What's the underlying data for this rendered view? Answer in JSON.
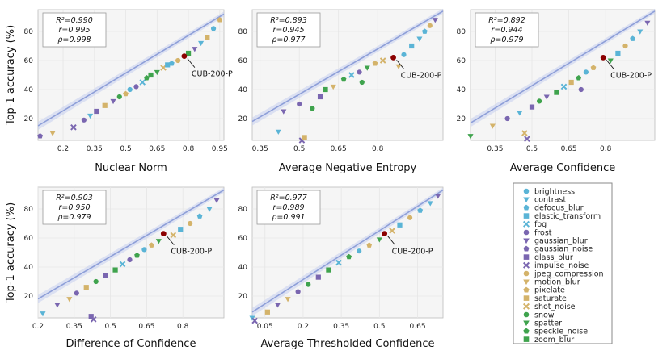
{
  "chart_data": [
    {
      "type": "scatter",
      "xlabel": "Nuclear Norm",
      "ylabel": "Top-1 accuracy (%)",
      "xticks": [
        "0.2",
        "0.35",
        "0.5",
        "0.65",
        "0.8",
        "0.95"
      ],
      "yticks": [
        "20",
        "40",
        "60",
        "80"
      ],
      "xlim": [
        0.08,
        0.97
      ],
      "ylim": [
        5,
        95
      ],
      "stats": [
        "R²=0.990",
        "r=0.995",
        "ρ=0.998"
      ],
      "annotation": "CUB-200-P",
      "fit": [
        [
          0.08,
          15
        ],
        [
          0.97,
          92
        ]
      ],
      "reference": [
        0.78,
        63
      ],
      "points": [
        [
          0.09,
          8,
          "gaussian_noise"
        ],
        [
          0.15,
          10,
          "motion_blur"
        ],
        [
          0.25,
          14,
          "impulse_noise"
        ],
        [
          0.3,
          19,
          "frost"
        ],
        [
          0.33,
          22,
          "contrast"
        ],
        [
          0.36,
          25,
          "glass_blur"
        ],
        [
          0.4,
          29,
          "saturate"
        ],
        [
          0.44,
          32,
          "gaussian_blur"
        ],
        [
          0.47,
          35,
          "snow"
        ],
        [
          0.5,
          37,
          "pixelate"
        ],
        [
          0.52,
          40,
          "brightness"
        ],
        [
          0.55,
          42,
          "frost"
        ],
        [
          0.58,
          45,
          "fog"
        ],
        [
          0.6,
          48,
          "speckle_noise"
        ],
        [
          0.62,
          50,
          "zoom_blur"
        ],
        [
          0.65,
          52,
          "spatter"
        ],
        [
          0.68,
          55,
          "shot_noise"
        ],
        [
          0.7,
          57,
          "elastic_transform"
        ],
        [
          0.72,
          58,
          "defocus_blur"
        ],
        [
          0.75,
          60,
          "jpeg_compression"
        ],
        [
          0.8,
          65,
          "zoom_blur"
        ],
        [
          0.83,
          68,
          "gaussian_blur"
        ],
        [
          0.86,
          72,
          "contrast"
        ],
        [
          0.89,
          76,
          "saturate"
        ],
        [
          0.92,
          82,
          "brightness"
        ],
        [
          0.95,
          88,
          "pixelate"
        ]
      ]
    },
    {
      "type": "scatter",
      "xlabel": "Average Negative Entropy",
      "ylabel": "",
      "xticks": [
        "0.35",
        "0.5",
        "0.65",
        "0.8"
      ],
      "yticks": [
        "20",
        "40",
        "60",
        "80"
      ],
      "xlim": [
        0.32,
        1.05
      ],
      "ylim": [
        5,
        95
      ],
      "stats": [
        "R²=0.893",
        "r=0.945",
        "ρ=0.977"
      ],
      "annotation": "CUB-200-P",
      "fit": [
        [
          0.32,
          18
        ],
        [
          1.05,
          94
        ]
      ],
      "reference": [
        0.86,
        62
      ],
      "points": [
        [
          0.42,
          11,
          "contrast"
        ],
        [
          0.51,
          5,
          "impulse_noise"
        ],
        [
          0.52,
          7,
          "saturate"
        ],
        [
          0.44,
          25,
          "gaussian_blur"
        ],
        [
          0.5,
          30,
          "frost"
        ],
        [
          0.55,
          27,
          "snow"
        ],
        [
          0.58,
          35,
          "glass_blur"
        ],
        [
          0.6,
          40,
          "zoom_blur"
        ],
        [
          0.63,
          42,
          "motion_blur"
        ],
        [
          0.67,
          47,
          "speckle_noise"
        ],
        [
          0.7,
          50,
          "fog"
        ],
        [
          0.73,
          52,
          "frost"
        ],
        [
          0.76,
          55,
          "spatter"
        ],
        [
          0.79,
          58,
          "pixelate"
        ],
        [
          0.82,
          60,
          "shot_noise"
        ],
        [
          0.9,
          64,
          "brightness"
        ],
        [
          0.93,
          70,
          "elastic_transform"
        ],
        [
          0.96,
          75,
          "contrast"
        ],
        [
          0.98,
          80,
          "defocus_blur"
        ],
        [
          1.0,
          84,
          "jpeg_compression"
        ],
        [
          1.02,
          88,
          "gaussian_blur"
        ],
        [
          0.88,
          56,
          "motion_blur"
        ],
        [
          0.74,
          45,
          "snow"
        ]
      ]
    },
    {
      "type": "scatter",
      "xlabel": "Average Confidence",
      "ylabel": "",
      "xticks": [
        "0.35",
        "0.5",
        "0.65",
        "0.8"
      ],
      "yticks": [
        "20",
        "40",
        "60",
        "80"
      ],
      "xlim": [
        0.25,
        1.0
      ],
      "ylim": [
        5,
        95
      ],
      "stats": [
        "R²=0.892",
        "r=0.944",
        "ρ=0.979"
      ],
      "annotation": "CUB-200-P",
      "fit": [
        [
          0.25,
          17
        ],
        [
          1.0,
          94
        ]
      ],
      "reference": [
        0.79,
        62
      ],
      "points": [
        [
          0.25,
          8,
          "spatter"
        ],
        [
          0.47,
          10,
          "shot_noise"
        ],
        [
          0.48,
          6,
          "impulse_noise"
        ],
        [
          0.34,
          15,
          "motion_blur"
        ],
        [
          0.4,
          20,
          "frost"
        ],
        [
          0.45,
          24,
          "contrast"
        ],
        [
          0.5,
          28,
          "glass_blur"
        ],
        [
          0.53,
          32,
          "snow"
        ],
        [
          0.56,
          35,
          "gaussian_blur"
        ],
        [
          0.6,
          38,
          "zoom_blur"
        ],
        [
          0.63,
          42,
          "fog"
        ],
        [
          0.66,
          45,
          "saturate"
        ],
        [
          0.69,
          48,
          "speckle_noise"
        ],
        [
          0.72,
          52,
          "brightness"
        ],
        [
          0.75,
          55,
          "pixelate"
        ],
        [
          0.82,
          60,
          "spatter"
        ],
        [
          0.85,
          65,
          "elastic_transform"
        ],
        [
          0.88,
          70,
          "jpeg_compression"
        ],
        [
          0.91,
          75,
          "defocus_blur"
        ],
        [
          0.94,
          80,
          "contrast"
        ],
        [
          0.97,
          86,
          "gaussian_blur"
        ],
        [
          0.7,
          40,
          "frost"
        ]
      ]
    },
    {
      "type": "scatter",
      "xlabel": "Difference of Confidence",
      "ylabel": "Top-1 accuracy (%)",
      "xticks": [
        "0.2",
        "0.35",
        "0.5",
        "0.65",
        "0.8"
      ],
      "yticks": [
        "20",
        "40",
        "60",
        "80"
      ],
      "xlim": [
        0.2,
        0.97
      ],
      "ylim": [
        5,
        95
      ],
      "stats": [
        "R²=0.903",
        "r=0.950",
        "ρ=0.979"
      ],
      "annotation": "CUB-200-P",
      "fit": [
        [
          0.2,
          18
        ],
        [
          0.97,
          93
        ]
      ],
      "reference": [
        0.72,
        63
      ],
      "points": [
        [
          0.22,
          8,
          "contrast"
        ],
        [
          0.42,
          6,
          "glass_blur"
        ],
        [
          0.43,
          4,
          "impulse_noise"
        ],
        [
          0.28,
          14,
          "gaussian_blur"
        ],
        [
          0.33,
          18,
          "motion_blur"
        ],
        [
          0.36,
          22,
          "frost"
        ],
        [
          0.4,
          26,
          "saturate"
        ],
        [
          0.44,
          30,
          "snow"
        ],
        [
          0.48,
          34,
          "glass_blur"
        ],
        [
          0.52,
          38,
          "zoom_blur"
        ],
        [
          0.55,
          42,
          "fog"
        ],
        [
          0.58,
          45,
          "frost"
        ],
        [
          0.61,
          48,
          "speckle_noise"
        ],
        [
          0.64,
          52,
          "brightness"
        ],
        [
          0.67,
          55,
          "pixelate"
        ],
        [
          0.7,
          58,
          "spatter"
        ],
        [
          0.76,
          62,
          "shot_noise"
        ],
        [
          0.79,
          66,
          "elastic_transform"
        ],
        [
          0.83,
          70,
          "jpeg_compression"
        ],
        [
          0.87,
          75,
          "defocus_blur"
        ],
        [
          0.91,
          80,
          "contrast"
        ],
        [
          0.94,
          86,
          "gaussian_blur"
        ]
      ]
    },
    {
      "type": "scatter",
      "xlabel": "Average Thresholded Confidence",
      "ylabel": "",
      "xticks": [
        "0.05",
        "0.2",
        "0.35",
        "0.5",
        "0.65"
      ],
      "yticks": [
        "20",
        "40",
        "60",
        "80"
      ],
      "xlim": [
        0.0,
        0.75
      ],
      "ylim": [
        5,
        95
      ],
      "stats": [
        "R²=0.977",
        "r=0.989",
        "ρ=0.991"
      ],
      "annotation": "CUB-200-P",
      "fit": [
        [
          0.0,
          9
        ],
        [
          0.75,
          93
        ]
      ],
      "reference": [
        0.52,
        63
      ],
      "points": [
        [
          0.0,
          5,
          "contrast"
        ],
        [
          0.01,
          3,
          "impulse_noise"
        ],
        [
          0.06,
          9,
          "saturate"
        ],
        [
          0.1,
          14,
          "gaussian_blur"
        ],
        [
          0.14,
          18,
          "motion_blur"
        ],
        [
          0.18,
          23,
          "frost"
        ],
        [
          0.22,
          28,
          "snow"
        ],
        [
          0.26,
          33,
          "glass_blur"
        ],
        [
          0.3,
          38,
          "zoom_blur"
        ],
        [
          0.34,
          43,
          "fog"
        ],
        [
          0.38,
          47,
          "speckle_noise"
        ],
        [
          0.42,
          51,
          "brightness"
        ],
        [
          0.46,
          55,
          "pixelate"
        ],
        [
          0.5,
          59,
          "spatter"
        ],
        [
          0.55,
          65,
          "shot_noise"
        ],
        [
          0.58,
          69,
          "elastic_transform"
        ],
        [
          0.62,
          74,
          "jpeg_compression"
        ],
        [
          0.66,
          79,
          "defocus_blur"
        ],
        [
          0.7,
          84,
          "contrast"
        ],
        [
          0.73,
          89,
          "gaussian_blur"
        ]
      ]
    }
  ],
  "legend": {
    "items": [
      {
        "name": "brightness",
        "color": "#5ab4d6",
        "marker": "circle"
      },
      {
        "name": "contrast",
        "color": "#5ab4d6",
        "marker": "tri-down"
      },
      {
        "name": "defocus_blur",
        "color": "#5ab4d6",
        "marker": "pentagon"
      },
      {
        "name": "elastic_transform",
        "color": "#5ab4d6",
        "marker": "square"
      },
      {
        "name": "fog",
        "color": "#5ab4d6",
        "marker": "x"
      },
      {
        "name": "frost",
        "color": "#7a66b0",
        "marker": "circle"
      },
      {
        "name": "gaussian_blur",
        "color": "#7a66b0",
        "marker": "tri-down"
      },
      {
        "name": "gaussian_noise",
        "color": "#7a66b0",
        "marker": "pentagon"
      },
      {
        "name": "glass_blur",
        "color": "#7a66b0",
        "marker": "square"
      },
      {
        "name": "impulse_noise",
        "color": "#7a66b0",
        "marker": "x"
      },
      {
        "name": "jpeg_compression",
        "color": "#d4b36a",
        "marker": "circle"
      },
      {
        "name": "motion_blur",
        "color": "#d4b36a",
        "marker": "tri-down"
      },
      {
        "name": "pixelate",
        "color": "#d4b36a",
        "marker": "pentagon"
      },
      {
        "name": "saturate",
        "color": "#d4b36a",
        "marker": "square"
      },
      {
        "name": "shot_noise",
        "color": "#d4b36a",
        "marker": "x"
      },
      {
        "name": "snow",
        "color": "#3fa34d",
        "marker": "circle"
      },
      {
        "name": "spatter",
        "color": "#3fa34d",
        "marker": "tri-down"
      },
      {
        "name": "speckle_noise",
        "color": "#3fa34d",
        "marker": "pentagon"
      },
      {
        "name": "zoom_blur",
        "color": "#3fa34d",
        "marker": "square"
      }
    ]
  },
  "colors": {
    "fit_line": "#8e9fd8",
    "reference": "#8b0000",
    "plot_bg": "#f5f5f5"
  }
}
